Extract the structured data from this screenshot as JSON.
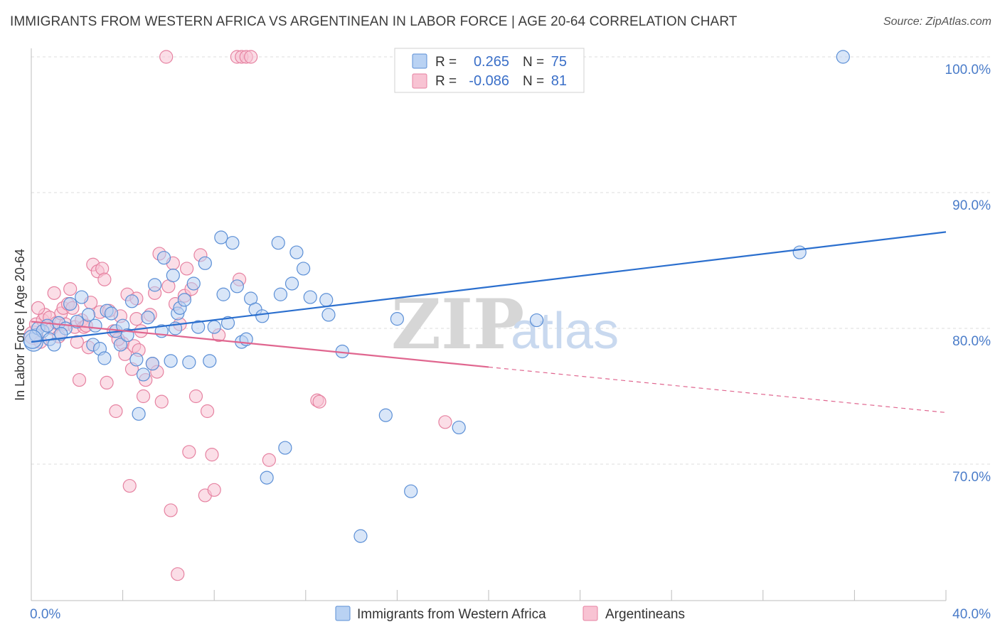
{
  "title": "IMMIGRANTS FROM WESTERN AFRICA VS ARGENTINEAN IN LABOR FORCE | AGE 20-64 CORRELATION CHART",
  "source": "Source: ZipAtlas.com",
  "watermark": {
    "zip": "ZIP",
    "atlas": "atlas"
  },
  "colors": {
    "blue_fill": "#b9d2f3",
    "blue_stroke": "#5b8fd6",
    "blue_line": "#2b6fce",
    "pink_fill": "#f8c3d3",
    "pink_stroke": "#e682a1",
    "pink_line": "#e0668f",
    "axis_text": "#4a7cc9",
    "grid": "#dddddd"
  },
  "legend_stats": [
    {
      "r_label": "R = ",
      "r_value": "0.265",
      "n_label": "N = ",
      "n_value": "75"
    },
    {
      "r_label": "R = ",
      "r_value": "-0.086",
      "n_label": "N = ",
      "n_value": "81"
    }
  ],
  "chart_data": {
    "type": "scatter",
    "ylabel": "In Labor Force | Age 20-64",
    "xlim": [
      0,
      40
    ],
    "ylim": [
      60.5,
      101
    ],
    "x_tick_labels": [
      "0.0%",
      "40.0%"
    ],
    "y_ticks": [
      {
        "value": 100,
        "label": "100.0%"
      },
      {
        "value": 90,
        "label": "90.0%"
      },
      {
        "value": 80,
        "label": "80.0%"
      },
      {
        "value": 70,
        "label": "70.0%"
      }
    ],
    "grid": "horizontal dashed",
    "legend_position": "bottom",
    "series": [
      {
        "name": "Immigrants from Western Africa",
        "color": "blue",
        "trend": {
          "x": [
            0,
            40
          ],
          "y": [
            79.0,
            87.1
          ],
          "dashed_from": null
        },
        "points": [
          [
            0.1,
            79.0
          ],
          [
            0.2,
            79.5
          ],
          [
            0.3,
            80.0
          ],
          [
            0.5,
            79.8
          ],
          [
            0.7,
            80.2
          ],
          [
            0.8,
            79.2
          ],
          [
            1.0,
            78.8
          ],
          [
            1.2,
            80.4
          ],
          [
            1.5,
            80.0
          ],
          [
            1.7,
            81.8
          ],
          [
            2.0,
            80.5
          ],
          [
            2.2,
            82.3
          ],
          [
            2.5,
            81.0
          ],
          [
            2.7,
            78.8
          ],
          [
            2.8,
            80.2
          ],
          [
            3.0,
            78.5
          ],
          [
            3.2,
            77.8
          ],
          [
            3.3,
            81.3
          ],
          [
            3.5,
            81.1
          ],
          [
            3.7,
            79.8
          ],
          [
            3.9,
            78.8
          ],
          [
            4.0,
            80.2
          ],
          [
            4.2,
            79.5
          ],
          [
            4.4,
            82.0
          ],
          [
            4.6,
            77.7
          ],
          [
            4.7,
            73.7
          ],
          [
            4.9,
            76.6
          ],
          [
            5.1,
            80.8
          ],
          [
            5.3,
            77.4
          ],
          [
            5.4,
            83.2
          ],
          [
            5.7,
            79.8
          ],
          [
            5.8,
            85.2
          ],
          [
            6.1,
            77.6
          ],
          [
            6.2,
            83.9
          ],
          [
            6.4,
            81.1
          ],
          [
            6.5,
            81.5
          ],
          [
            6.7,
            82.1
          ],
          [
            6.9,
            77.5
          ],
          [
            7.1,
            83.3
          ],
          [
            7.3,
            80.1
          ],
          [
            7.6,
            84.8
          ],
          [
            7.8,
            77.6
          ],
          [
            8.0,
            80.1
          ],
          [
            8.3,
            86.7
          ],
          [
            8.4,
            82.5
          ],
          [
            8.6,
            80.4
          ],
          [
            8.8,
            86.3
          ],
          [
            9.0,
            83.1
          ],
          [
            9.2,
            79.0
          ],
          [
            9.4,
            79.2
          ],
          [
            9.6,
            82.2
          ],
          [
            9.8,
            81.4
          ],
          [
            10.1,
            80.9
          ],
          [
            10.3,
            69.0
          ],
          [
            10.8,
            86.3
          ],
          [
            10.9,
            82.5
          ],
          [
            11.1,
            71.2
          ],
          [
            11.4,
            83.3
          ],
          [
            11.6,
            85.6
          ],
          [
            11.9,
            84.4
          ],
          [
            12.2,
            82.3
          ],
          [
            12.9,
            82.1
          ],
          [
            13.0,
            81.0
          ],
          [
            13.6,
            78.3
          ],
          [
            14.4,
            64.7
          ],
          [
            15.5,
            73.6
          ],
          [
            16.0,
            80.7
          ],
          [
            16.6,
            68.0
          ],
          [
            18.7,
            72.7
          ],
          [
            22.1,
            80.6
          ],
          [
            33.6,
            85.6
          ],
          [
            35.5,
            100.0
          ],
          [
            0.05,
            79.2
          ],
          [
            1.3,
            79.6
          ],
          [
            6.3,
            80.0
          ]
        ]
      },
      {
        "name": "Argentineans",
        "color": "pink",
        "trend": {
          "x": [
            0,
            40
          ],
          "y": [
            80.5,
            73.8
          ],
          "dashed_from": 20
        },
        "points": [
          [
            0.1,
            79.5
          ],
          [
            0.2,
            80.3
          ],
          [
            0.4,
            79.0
          ],
          [
            0.5,
            80.6
          ],
          [
            0.6,
            81.0
          ],
          [
            0.8,
            80.8
          ],
          [
            0.9,
            80.0
          ],
          [
            1.0,
            82.6
          ],
          [
            1.1,
            80.4
          ],
          [
            1.3,
            81.1
          ],
          [
            1.4,
            81.5
          ],
          [
            1.5,
            80.3
          ],
          [
            1.6,
            81.8
          ],
          [
            1.7,
            82.9
          ],
          [
            1.8,
            81.5
          ],
          [
            1.9,
            80.1
          ],
          [
            2.0,
            79.0
          ],
          [
            2.1,
            76.2
          ],
          [
            2.2,
            80.6
          ],
          [
            2.3,
            80.1
          ],
          [
            2.5,
            78.6
          ],
          [
            2.6,
            81.9
          ],
          [
            2.7,
            84.7
          ],
          [
            2.9,
            84.2
          ],
          [
            3.0,
            81.2
          ],
          [
            3.1,
            84.4
          ],
          [
            3.2,
            83.6
          ],
          [
            3.3,
            76.0
          ],
          [
            3.4,
            81.3
          ],
          [
            3.6,
            79.8
          ],
          [
            3.7,
            73.9
          ],
          [
            3.9,
            80.9
          ],
          [
            4.0,
            78.9
          ],
          [
            4.1,
            78.1
          ],
          [
            4.2,
            82.5
          ],
          [
            4.3,
            68.4
          ],
          [
            4.4,
            77.0
          ],
          [
            4.5,
            78.7
          ],
          [
            4.6,
            80.7
          ],
          [
            4.7,
            78.4
          ],
          [
            4.8,
            79.8
          ],
          [
            4.9,
            75.0
          ],
          [
            5.0,
            76.2
          ],
          [
            5.2,
            81.0
          ],
          [
            5.3,
            77.4
          ],
          [
            5.4,
            82.6
          ],
          [
            5.5,
            76.8
          ],
          [
            5.6,
            85.5
          ],
          [
            5.7,
            74.6
          ],
          [
            5.9,
            100.0
          ],
          [
            6.0,
            83.1
          ],
          [
            6.1,
            66.6
          ],
          [
            6.2,
            84.8
          ],
          [
            6.3,
            81.8
          ],
          [
            6.4,
            61.9
          ],
          [
            6.5,
            80.3
          ],
          [
            6.7,
            82.4
          ],
          [
            6.8,
            84.4
          ],
          [
            6.9,
            70.9
          ],
          [
            7.0,
            82.9
          ],
          [
            7.2,
            75.0
          ],
          [
            7.4,
            85.4
          ],
          [
            7.6,
            67.7
          ],
          [
            7.7,
            73.9
          ],
          [
            7.9,
            70.7
          ],
          [
            8.0,
            68.1
          ],
          [
            8.2,
            79.5
          ],
          [
            9.0,
            100.0
          ],
          [
            9.1,
            83.6
          ],
          [
            9.2,
            100.0
          ],
          [
            9.4,
            100.0
          ],
          [
            9.6,
            100.0
          ],
          [
            10.4,
            70.3
          ],
          [
            12.5,
            74.7
          ],
          [
            12.6,
            74.6
          ],
          [
            18.1,
            73.1
          ],
          [
            0.3,
            81.5
          ],
          [
            1.2,
            79.4
          ],
          [
            2.4,
            80.2
          ],
          [
            3.8,
            79.2
          ],
          [
            4.6,
            82.2
          ]
        ]
      }
    ]
  }
}
